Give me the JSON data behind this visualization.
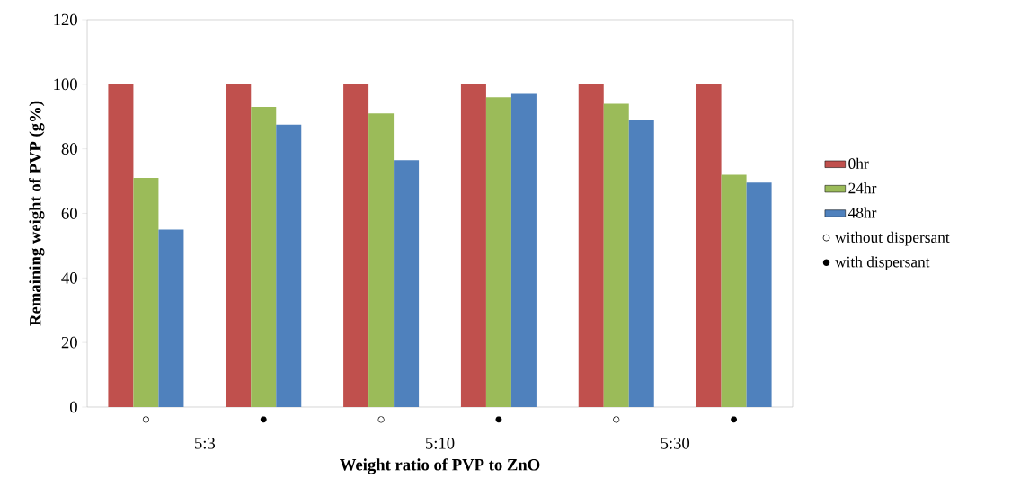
{
  "chart_data": {
    "type": "bar",
    "xlabel": "Weight ratio of PVP to ZnO",
    "ylabel": "Remaining weight of PVP (g%)",
    "categories": [
      "○",
      "●",
      "○",
      "●",
      "○",
      "●"
    ],
    "series": [
      {
        "name": "0hr",
        "color": "#c0504d",
        "values": [
          100,
          100,
          100,
          100,
          100,
          100
        ]
      },
      {
        "name": "24hr",
        "color": "#9bbb59",
        "values": [
          71,
          93,
          91,
          96,
          94,
          72
        ]
      },
      {
        "name": "48hr",
        "color": "#4f81bd",
        "values": [
          55,
          87.5,
          76.5,
          97,
          89,
          69.5
        ]
      }
    ],
    "ylim": [
      0,
      120
    ],
    "yticks": [
      0,
      20,
      40,
      60,
      80,
      100,
      120
    ],
    "legend": "right",
    "annotations": [
      "5:3",
      "5:10",
      "5:30",
      "○ without dispersant",
      "● with dispersant"
    ]
  }
}
